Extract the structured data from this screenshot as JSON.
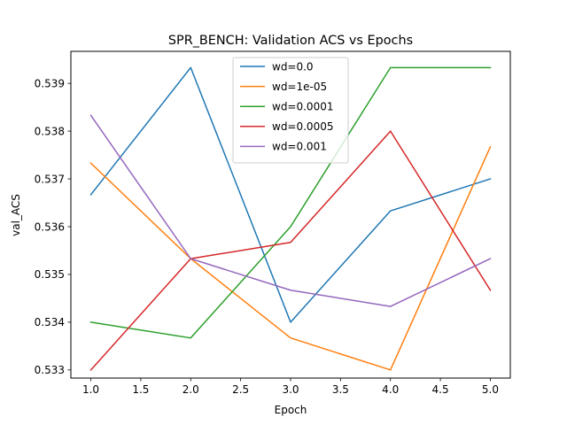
{
  "chart_data": {
    "type": "line",
    "title": "SPR_BENCH: Validation ACS vs Epochs",
    "xlabel": "Epoch",
    "ylabel": "val_ACS",
    "x": [
      1,
      2,
      3,
      4,
      5
    ],
    "xlim": [
      0.8,
      5.2
    ],
    "ylim": [
      0.53283,
      0.53967
    ],
    "xticks": [
      1.0,
      1.5,
      2.0,
      2.5,
      3.0,
      3.5,
      4.0,
      4.5,
      5.0
    ],
    "xtick_labels": [
      "1.0",
      "1.5",
      "2.0",
      "2.5",
      "3.0",
      "3.5",
      "4.0",
      "4.5",
      "5.0"
    ],
    "yticks": [
      0.533,
      0.534,
      0.535,
      0.536,
      0.537,
      0.538,
      0.539
    ],
    "ytick_labels": [
      "0.533",
      "0.534",
      "0.535",
      "0.536",
      "0.537",
      "0.538",
      "0.539"
    ],
    "grid": false,
    "legend_position": "top-center",
    "series": [
      {
        "name": "wd=0.0",
        "color": "#1f77b4",
        "values": [
          0.53667,
          0.53933,
          0.534,
          0.53633,
          0.537
        ]
      },
      {
        "name": "wd=1e-05",
        "color": "#ff7f0e",
        "values": [
          0.53733,
          0.53533,
          0.53367,
          0.533,
          0.53767
        ]
      },
      {
        "name": "wd=0.0001",
        "color": "#2ca02c",
        "values": [
          0.534,
          0.53367,
          0.536,
          0.53933,
          0.53933
        ]
      },
      {
        "name": "wd=0.0005",
        "color": "#d62728",
        "values": [
          0.533,
          0.53533,
          0.53567,
          0.538,
          0.53467
        ]
      },
      {
        "name": "wd=0.001",
        "color": "#9467bd",
        "values": [
          0.53833,
          0.53533,
          0.53467,
          0.53433,
          0.53533
        ]
      }
    ]
  }
}
